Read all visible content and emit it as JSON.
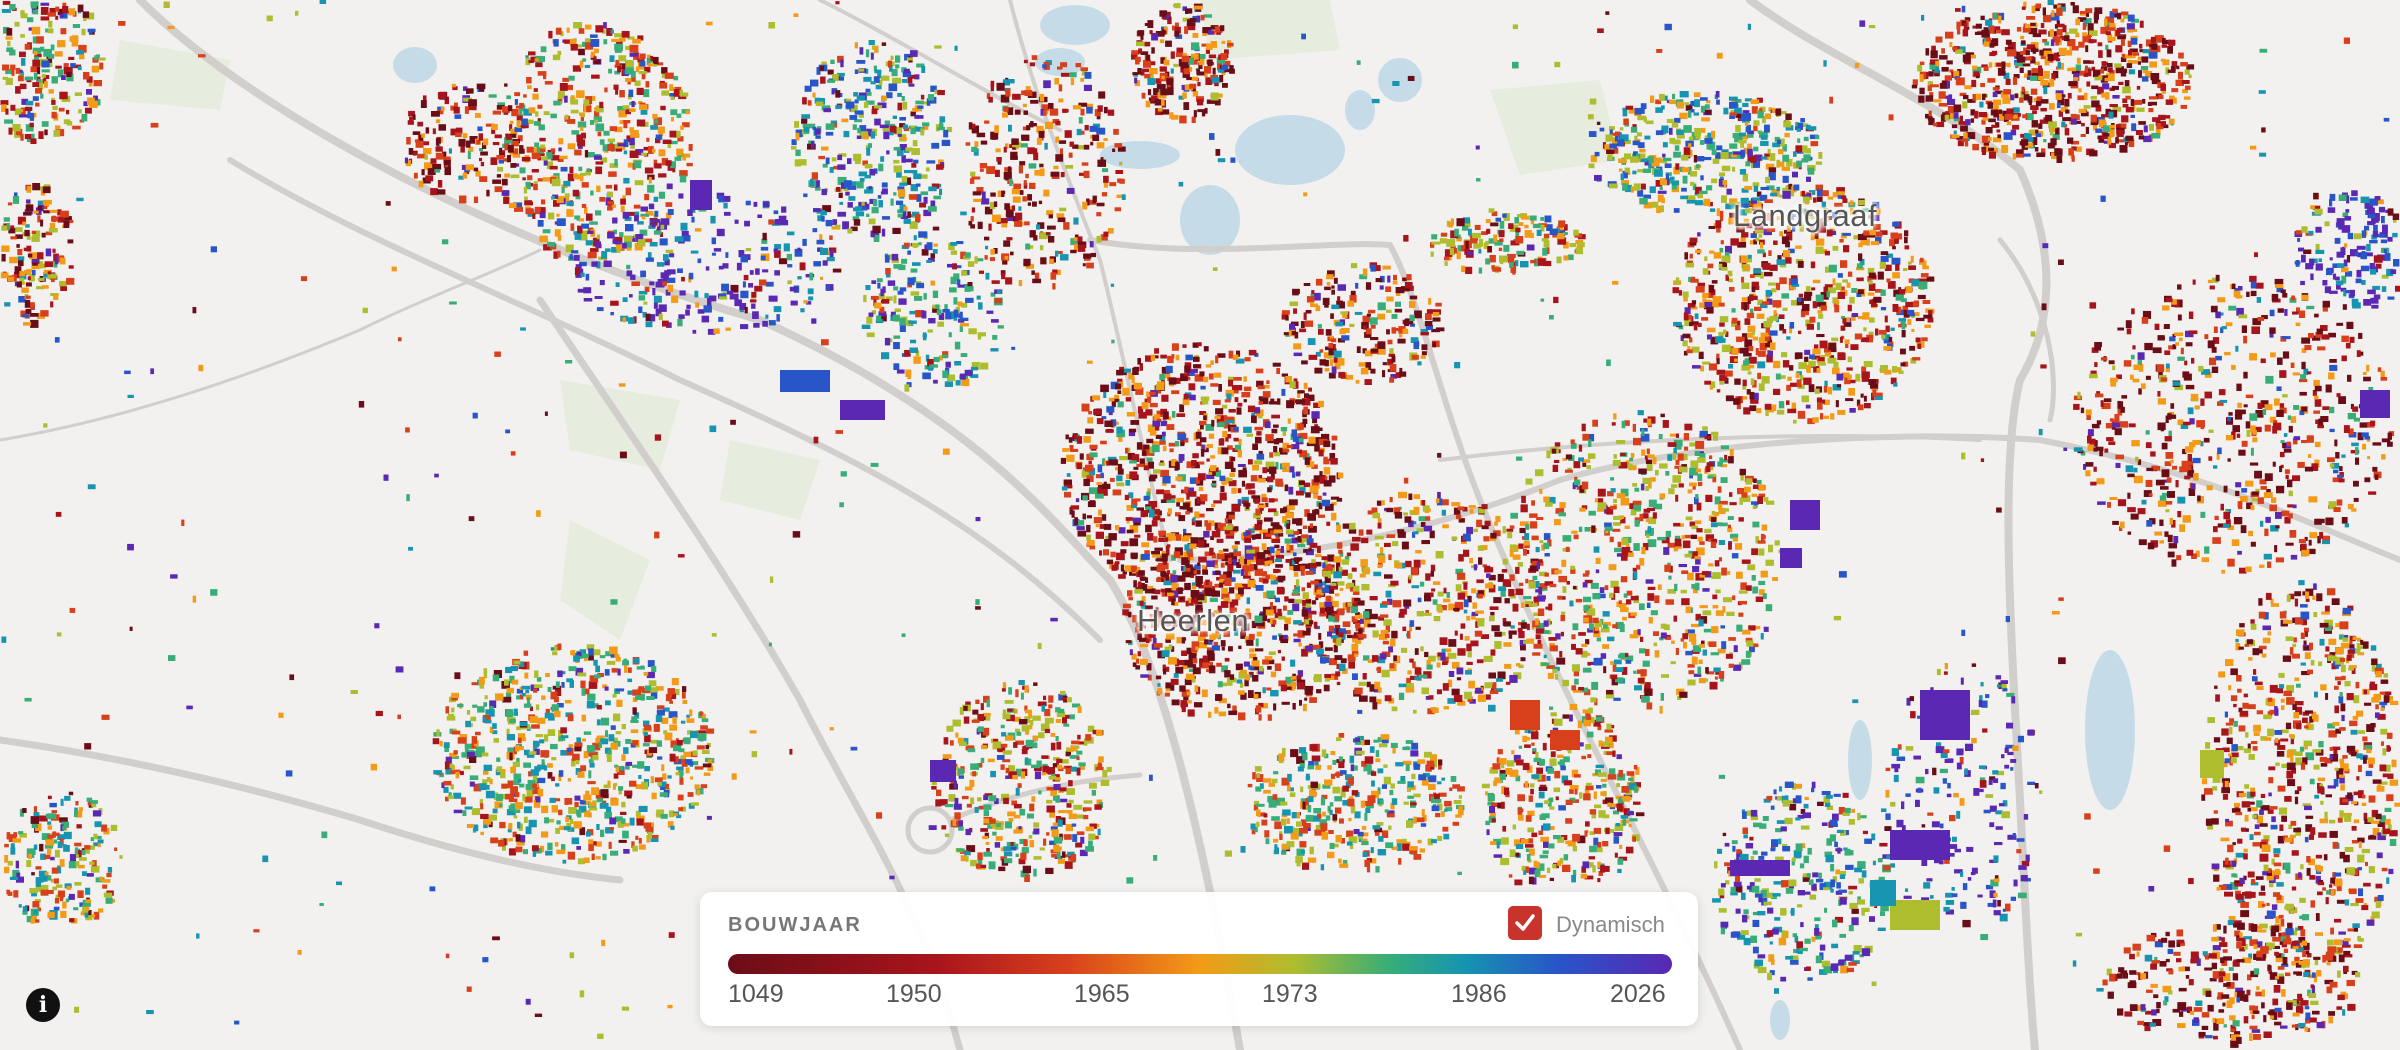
{
  "map": {
    "places": [
      {
        "name": "Landgraaf"
      },
      {
        "name": "Heerlen"
      }
    ],
    "palette": [
      "#6b0d16",
      "#a8141c",
      "#d8401c",
      "#f39b17",
      "#aebd2e",
      "#38ad78",
      "#1694b0",
      "#2855c8",
      "#5a28b2"
    ],
    "background_color": "#f2f1ef",
    "water_color": "#c6dbe8",
    "road_color": "#cfccc8",
    "park_color": "#e6ecde"
  },
  "legend": {
    "title": "BOUWJAAR",
    "dynamic_label": "Dynamisch",
    "dynamic_checked": true,
    "ticks": [
      "1049",
      "1950",
      "1965",
      "1973",
      "1986",
      "2026"
    ]
  },
  "controls": {
    "info_icon": "info-icon"
  }
}
